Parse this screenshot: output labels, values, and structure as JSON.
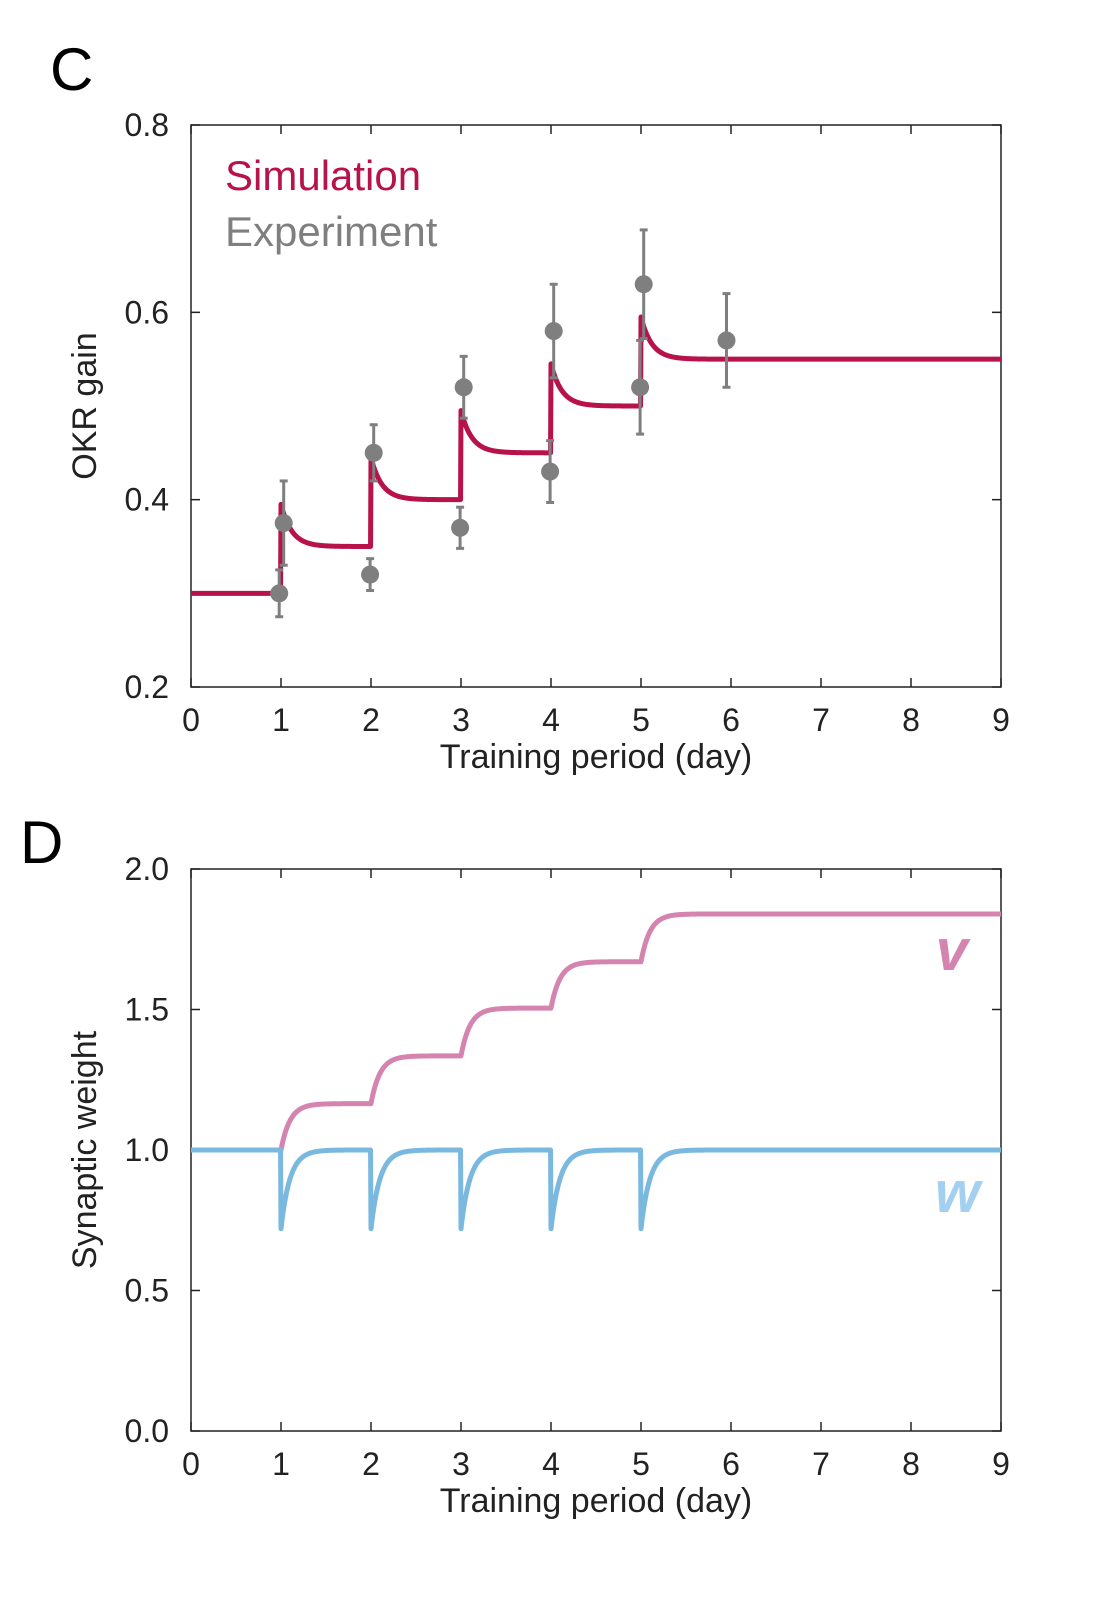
{
  "chart_data": [
    {
      "type": "line",
      "panel": "C",
      "xlabel": "Training period (day)",
      "ylabel": "OKR gain",
      "xlim": [
        0,
        9
      ],
      "ylim": [
        0.2,
        0.8
      ],
      "xticks": [
        "0",
        "1",
        "2",
        "3",
        "4",
        "5",
        "6",
        "7",
        "8",
        "9"
      ],
      "yticks": [
        "0.2",
        "0.4",
        "0.6",
        "0.8"
      ],
      "legend": [
        "Simulation",
        "Experiment"
      ],
      "legend_position": "top-left",
      "colors": {
        "simulation": "#b8124a",
        "experiment": "#7f7f7f"
      },
      "simulation": {
        "name": "Simulation",
        "baseline": 0.3,
        "steps": [
          1,
          2,
          3,
          4,
          5
        ],
        "peaks": [
          0.395,
          0.445,
          0.495,
          0.545,
          0.595
        ],
        "plateaus": [
          0.35,
          0.4,
          0.45,
          0.5,
          0.55
        ],
        "decay_tau_days": 0.12
      },
      "experiment": {
        "name": "Experiment",
        "points": [
          {
            "x": 0.98,
            "y": 0.3,
            "err": 0.025
          },
          {
            "x": 1.03,
            "y": 0.375,
            "err": 0.045
          },
          {
            "x": 1.99,
            "y": 0.32,
            "err": 0.017
          },
          {
            "x": 2.03,
            "y": 0.45,
            "err": 0.03
          },
          {
            "x": 2.99,
            "y": 0.37,
            "err": 0.022
          },
          {
            "x": 3.03,
            "y": 0.52,
            "err": 0.033
          },
          {
            "x": 3.99,
            "y": 0.43,
            "err": 0.033
          },
          {
            "x": 4.03,
            "y": 0.58,
            "err": 0.05
          },
          {
            "x": 4.99,
            "y": 0.52,
            "err": 0.05
          },
          {
            "x": 5.03,
            "y": 0.63,
            "err": 0.058
          },
          {
            "x": 5.95,
            "y": 0.57,
            "err": 0.05
          }
        ]
      }
    },
    {
      "type": "line",
      "panel": "D",
      "xlabel": "Training period (day)",
      "ylabel": "Synaptic weight",
      "xlim": [
        0,
        9
      ],
      "ylim": [
        0.0,
        2.0
      ],
      "xticks": [
        "0",
        "1",
        "2",
        "3",
        "4",
        "5",
        "6",
        "7",
        "8",
        "9"
      ],
      "yticks": [
        "0.0",
        "0.5",
        "1.0",
        "1.5",
        "2.0"
      ],
      "colors": {
        "v": "#d584b0",
        "w": "#7ab8df",
        "w_label": "#a3d0f0"
      },
      "series": [
        {
          "name": "v",
          "baseline": 1.0,
          "steps": [
            1,
            2,
            3,
            4,
            5
          ],
          "plateaus": [
            1.165,
            1.335,
            1.505,
            1.67,
            1.84
          ],
          "rise_tau_days": 0.1
        },
        {
          "name": "w",
          "baseline": 1.0,
          "steps": [
            1,
            2,
            3,
            4,
            5
          ],
          "trough": 0.72,
          "recover_tau_days": 0.1
        }
      ]
    }
  ]
}
